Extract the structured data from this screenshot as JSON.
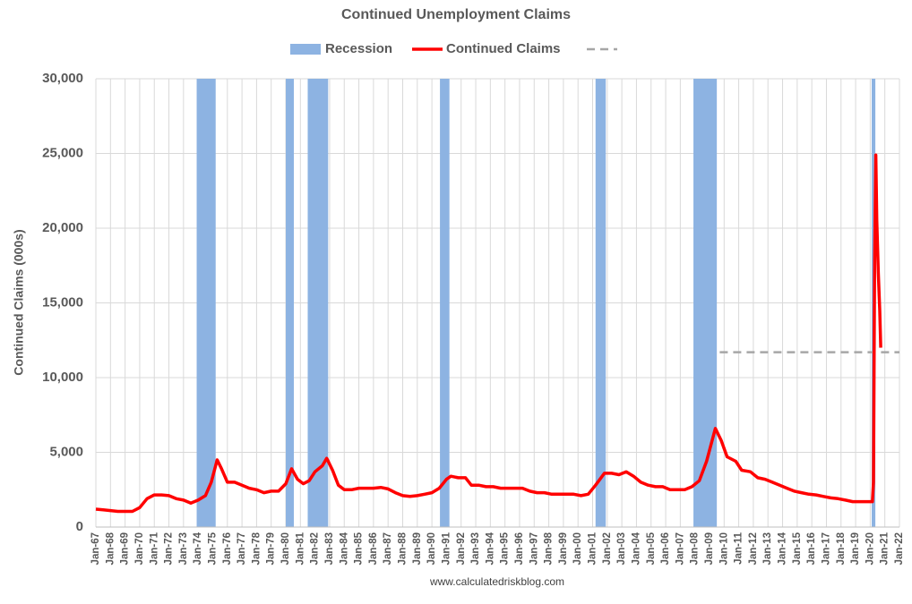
{
  "chart_data": {
    "type": "line",
    "title": "Continued Unemployment Claims",
    "y_label": "Continued Claims (000s)",
    "source": "www.calculatedriskblog.com",
    "xlim": [
      1967,
      2022
    ],
    "xticks": [
      {
        "value": 1967,
        "label": "Jan-67"
      },
      {
        "value": 1968,
        "label": "Jan-68"
      },
      {
        "value": 1969,
        "label": "Jan-69"
      },
      {
        "value": 1970,
        "label": "Jan-70"
      },
      {
        "value": 1971,
        "label": "Jan-71"
      },
      {
        "value": 1972,
        "label": "Jan-72"
      },
      {
        "value": 1973,
        "label": "Jan-73"
      },
      {
        "value": 1974,
        "label": "Jan-74"
      },
      {
        "value": 1975,
        "label": "Jan-75"
      },
      {
        "value": 1976,
        "label": "Jan-76"
      },
      {
        "value": 1977,
        "label": "Jan-77"
      },
      {
        "value": 1978,
        "label": "Jan-78"
      },
      {
        "value": 1979,
        "label": "Jan-79"
      },
      {
        "value": 1980,
        "label": "Jan-80"
      },
      {
        "value": 1981,
        "label": "Jan-81"
      },
      {
        "value": 1982,
        "label": "Jan-82"
      },
      {
        "value": 1983,
        "label": "Jan-83"
      },
      {
        "value": 1984,
        "label": "Jan-84"
      },
      {
        "value": 1985,
        "label": "Jan-85"
      },
      {
        "value": 1986,
        "label": "Jan-86"
      },
      {
        "value": 1987,
        "label": "Jan-87"
      },
      {
        "value": 1988,
        "label": "Jan-88"
      },
      {
        "value": 1989,
        "label": "Jan-89"
      },
      {
        "value": 1990,
        "label": "Jan-90"
      },
      {
        "value": 1991,
        "label": "Jan-91"
      },
      {
        "value": 1992,
        "label": "Jan-92"
      },
      {
        "value": 1993,
        "label": "Jan-93"
      },
      {
        "value": 1994,
        "label": "Jan-94"
      },
      {
        "value": 1995,
        "label": "Jan-95"
      },
      {
        "value": 1996,
        "label": "Jan-96"
      },
      {
        "value": 1997,
        "label": "Jan-97"
      },
      {
        "value": 1998,
        "label": "Jan-98"
      },
      {
        "value": 1999,
        "label": "Jan-99"
      },
      {
        "value": 2000,
        "label": "Jan-00"
      },
      {
        "value": 2001,
        "label": "Jan-01"
      },
      {
        "value": 2002,
        "label": "Jan-02"
      },
      {
        "value": 2003,
        "label": "Jan-03"
      },
      {
        "value": 2004,
        "label": "Jan-04"
      },
      {
        "value": 2005,
        "label": "Jan-05"
      },
      {
        "value": 2006,
        "label": "Jan-06"
      },
      {
        "value": 2007,
        "label": "Jan-07"
      },
      {
        "value": 2008,
        "label": "Jan-08"
      },
      {
        "value": 2009,
        "label": "Jan-09"
      },
      {
        "value": 2010,
        "label": "Jan-10"
      },
      {
        "value": 2011,
        "label": "Jan-11"
      },
      {
        "value": 2012,
        "label": "Jan-12"
      },
      {
        "value": 2013,
        "label": "Jan-13"
      },
      {
        "value": 2014,
        "label": "Jan-14"
      },
      {
        "value": 2015,
        "label": "Jan-15"
      },
      {
        "value": 2016,
        "label": "Jan-16"
      },
      {
        "value": 2017,
        "label": "Jan-17"
      },
      {
        "value": 2018,
        "label": "Jan-18"
      },
      {
        "value": 2019,
        "label": "Jan-19"
      },
      {
        "value": 2020,
        "label": "Jan-20"
      },
      {
        "value": 2021,
        "label": "Jan-21"
      },
      {
        "value": 2022,
        "label": "Jan-22"
      }
    ],
    "ylim": [
      0,
      30000
    ],
    "yticks": [
      0,
      {
        "value": 5000,
        "label": "5,000"
      },
      {
        "value": 10000,
        "label": "10,000"
      },
      {
        "value": 15000,
        "label": "15,000"
      },
      {
        "value": 20000,
        "label": "20,000"
      },
      {
        "value": 25000,
        "label": "25,000"
      },
      {
        "value": 30000,
        "label": "30,000"
      }
    ],
    "grid": true,
    "recession": {
      "name": "Recession",
      "color": "#8db3e2",
      "periods": [
        [
          1973.9,
          1975.2
        ],
        [
          1980.0,
          1980.55
        ],
        [
          1981.5,
          1982.9
        ],
        [
          1990.55,
          1991.2
        ],
        [
          2001.2,
          2001.9
        ],
        [
          2007.9,
          2009.5
        ],
        [
          2020.1,
          2020.35
        ]
      ]
    },
    "reference_line": {
      "value": 11700,
      "start": 2009.7,
      "end": 2022,
      "color": "#a6a6a6"
    },
    "series": [
      {
        "name": "Continued Claims",
        "color": "#ff0000",
        "x": [
          1967.0,
          1967.5,
          1968.0,
          1968.5,
          1969.0,
          1969.5,
          1970.0,
          1970.5,
          1971.0,
          1971.5,
          1972.0,
          1972.5,
          1973.0,
          1973.5,
          1974.0,
          1974.5,
          1974.9,
          1975.3,
          1975.6,
          1976.0,
          1976.5,
          1977.0,
          1977.5,
          1978.0,
          1978.5,
          1979.0,
          1979.5,
          1980.0,
          1980.4,
          1980.8,
          1981.2,
          1981.6,
          1982.0,
          1982.5,
          1982.8,
          1983.2,
          1983.6,
          1984.0,
          1984.5,
          1985.0,
          1985.5,
          1986.0,
          1986.5,
          1987.0,
          1987.5,
          1988.0,
          1988.5,
          1989.0,
          1989.5,
          1990.0,
          1990.5,
          1991.0,
          1991.3,
          1991.8,
          1992.3,
          1992.7,
          1993.2,
          1993.7,
          1994.2,
          1994.7,
          1995.2,
          1995.7,
          1996.2,
          1996.7,
          1997.2,
          1997.7,
          1998.2,
          1998.7,
          1999.2,
          1999.7,
          2000.2,
          2000.7,
          2001.2,
          2001.8,
          2002.3,
          2002.8,
          2003.3,
          2003.8,
          2004.3,
          2004.8,
          2005.3,
          2005.8,
          2006.3,
          2006.8,
          2007.3,
          2007.8,
          2008.3,
          2008.8,
          2009.4,
          2009.8,
          2010.2,
          2010.8,
          2011.2,
          2011.8,
          2012.3,
          2012.8,
          2013.3,
          2013.8,
          2014.3,
          2014.8,
          2015.3,
          2015.8,
          2016.3,
          2016.8,
          2017.3,
          2017.8,
          2018.3,
          2018.8,
          2019.3,
          2019.8,
          2020.15,
          2020.22,
          2020.3,
          2020.38,
          2020.45,
          2020.55,
          2020.65,
          2020.72
        ],
        "values": [
          1200,
          1150,
          1100,
          1050,
          1050,
          1050,
          1300,
          1900,
          2150,
          2150,
          2100,
          1900,
          1800,
          1600,
          1800,
          2100,
          3000,
          4500,
          3900,
          3000,
          3000,
          2800,
          2600,
          2500,
          2300,
          2400,
          2400,
          2900,
          3900,
          3200,
          2900,
          3100,
          3700,
          4100,
          4600,
          3800,
          2800,
          2500,
          2500,
          2600,
          2600,
          2600,
          2650,
          2550,
          2300,
          2100,
          2050,
          2100,
          2200,
          2300,
          2600,
          3200,
          3400,
          3300,
          3300,
          2800,
          2800,
          2700,
          2700,
          2600,
          2600,
          2600,
          2600,
          2400,
          2300,
          2300,
          2200,
          2200,
          2200,
          2200,
          2100,
          2200,
          2800,
          3600,
          3600,
          3500,
          3700,
          3400,
          3000,
          2800,
          2700,
          2700,
          2500,
          2500,
          2500,
          2700,
          3100,
          4400,
          6600,
          5800,
          4700,
          4400,
          3800,
          3700,
          3300,
          3200,
          3000,
          2800,
          2600,
          2400,
          2300,
          2200,
          2150,
          2050,
          1950,
          1900,
          1800,
          1700,
          1700,
          1700,
          1700,
          3000,
          18000,
          24900,
          20500,
          17000,
          14500,
          12000
        ]
      }
    ]
  }
}
